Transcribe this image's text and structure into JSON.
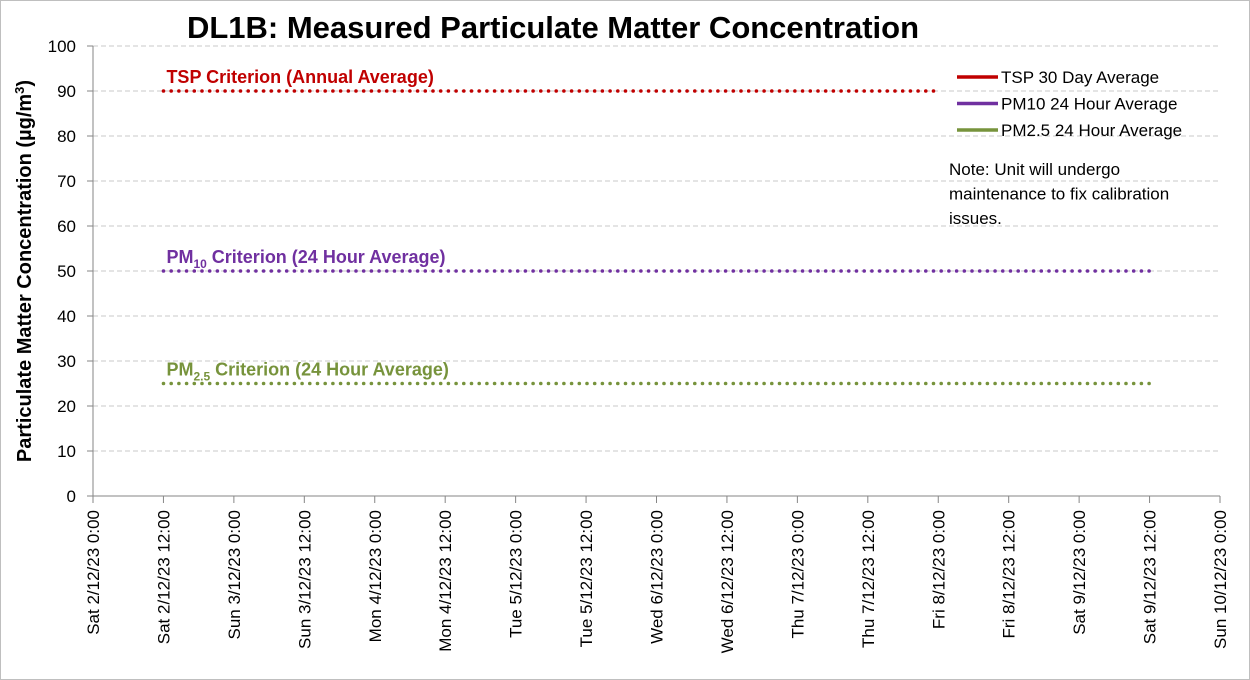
{
  "chart_data": {
    "type": "line",
    "title": "DL1B: Measured Particulate Matter Concentration",
    "ylabel": "Particulate Matter Concentration (µg/m³)",
    "ylabel_parts": {
      "main": "Particulate Matter Concentration (µg/m",
      "sup": "3",
      "end": ")"
    },
    "ylim": [
      0,
      100
    ],
    "yticks": [
      "0",
      "10",
      "20",
      "30",
      "40",
      "50",
      "60",
      "70",
      "80",
      "90",
      "100"
    ],
    "xticks": [
      "Sat 2/12/23 0:00",
      "Sat 2/12/23 12:00",
      "Sun 3/12/23 0:00",
      "Sun 3/12/23 12:00",
      "Mon 4/12/23 0:00",
      "Mon 4/12/23 12:00",
      "Tue 5/12/23 0:00",
      "Tue 5/12/23 12:00",
      "Wed 6/12/23 0:00",
      "Wed 6/12/23 12:00",
      "Thu 7/12/23 0:00",
      "Thu 7/12/23 12:00",
      "Fri 8/12/23 0:00",
      "Fri 8/12/23 12:00",
      "Sat 9/12/23 0:00",
      "Sat 9/12/23 12:00",
      "Sun 10/12/23 0:00"
    ],
    "grid": true,
    "criteria": [
      {
        "label": "TSP Criterion (Annual Average)",
        "label_main": "TSP Criterion (Annual Average)",
        "sub": "",
        "rest": "",
        "value": 90,
        "x_start": "Sat 2/12/23 12:00",
        "x_end": "Fri 8/12/23 0:00",
        "color": "#c00000"
      },
      {
        "label": "PM10 Criterion (24 Hour Average)",
        "label_main": "PM",
        "sub": "10",
        "rest": " Criterion (24 Hour Average)",
        "value": 50,
        "x_start": "Sat 2/12/23 12:00",
        "x_end": "Sat 9/12/23 12:00",
        "color": "#7030a0"
      },
      {
        "label": "PM2.5 Criterion (24 Hour Average)",
        "label_main": "PM",
        "sub": "2.5",
        "rest": " Criterion (24 Hour Average)",
        "value": 25,
        "x_start": "Sat 2/12/23 12:00",
        "x_end": "Sat 9/12/23 12:00",
        "color": "#77933c"
      }
    ],
    "series": [
      {
        "name": "TSP 30 Day Average",
        "color": "#c00000",
        "values": []
      },
      {
        "name": "PM10 24 Hour Average",
        "color": "#7030a0",
        "values": []
      },
      {
        "name": "PM2.5 24 Hour Average",
        "color": "#77933c",
        "values": []
      }
    ],
    "legend_position": "top-right",
    "note": [
      "Note: Unit will undergo",
      "maintenance to fix calibration",
      "issues."
    ]
  }
}
